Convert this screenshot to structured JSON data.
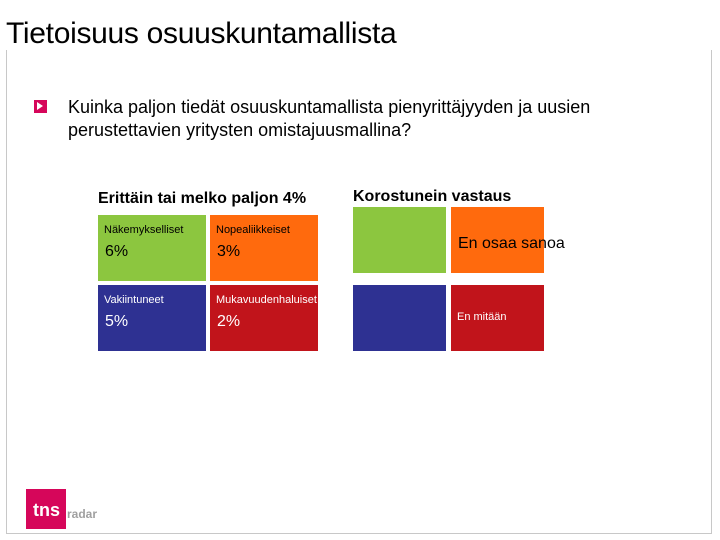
{
  "slide": {
    "title": "Tietoisuus osuuskuntamallista",
    "question": "Kuinka paljon tiedät osuuskuntamallista pienyrittäjyyden ja uusien perustettavien yritysten omistajuusmallina?"
  },
  "left_group": {
    "title": "Erittäin tai melko paljon 4%",
    "tiles": [
      {
        "label": "Näkemykselliset",
        "value": "6%",
        "color": "#8cc63f"
      },
      {
        "label": "Nopealiikkeiset",
        "value": "3%",
        "color": "#ff6a0d"
      },
      {
        "label": "Vakiintuneet",
        "value": "5%",
        "color": "#2e3192"
      },
      {
        "label": "Mukavuudenhaluiset",
        "value": "2%",
        "color": "#c1141b"
      }
    ]
  },
  "right_group": {
    "title": "Korostunein vastaus",
    "answers": [
      "En osaa sanoa",
      "En mitään"
    ]
  },
  "logo": {
    "brand": "tns",
    "sub": "radar"
  },
  "colors": {
    "accent": "#d6065a",
    "green": "#8cc63f",
    "orange": "#ff6a0d",
    "blue": "#2e3192",
    "red": "#c1141b"
  }
}
